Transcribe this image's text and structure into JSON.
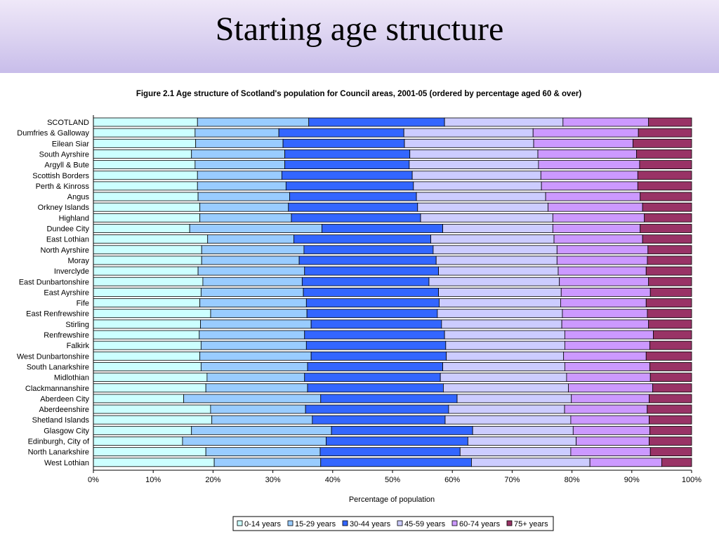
{
  "slide": {
    "title": "Starting age structure"
  },
  "chart_data": {
    "type": "bar",
    "orientation": "horizontal",
    "stacked": true,
    "title": "Figure 2.1 Age structure of Scotland's population for Council areas, 2001-05 (ordered by percentage aged 60 & over)",
    "xlabel": "Percentage of population",
    "ylabel": "",
    "xlim": [
      0,
      100
    ],
    "x_ticks": [
      "0%",
      "10%",
      "20%",
      "30%",
      "40%",
      "50%",
      "60%",
      "70%",
      "80%",
      "90%",
      "100%"
    ],
    "legend_position": "bottom",
    "grid": false,
    "categories": [
      "SCOTLAND",
      "Dumfries & Galloway",
      "Eilean Siar",
      "South Ayrshire",
      "Argyll & Bute",
      "Scottish Borders",
      "Perth & Kinross",
      "Angus",
      "Orkney Islands",
      "Highland",
      "Dundee City",
      "East Lothian",
      "North Ayrshire",
      "Moray",
      "Inverclyde",
      "East Dunbartonshire",
      "East Ayrshire",
      "Fife",
      "East Renfrewshire",
      "Stirling",
      "Renfrewshire",
      "Falkirk",
      "West Dunbartonshire",
      "South Lanarkshire",
      "Midlothian",
      "Clackmannanshire",
      "Aberdeen City",
      "Aberdeenshire",
      "Shetland Islands",
      "Glasgow City",
      "Edinburgh, City of",
      "North Lanarkshire",
      "West Lothian"
    ],
    "series": [
      {
        "name": "0-14 years",
        "color": "#ccffff",
        "values": [
          17.4,
          17.0,
          17.1,
          16.4,
          17.0,
          17.4,
          17.4,
          17.5,
          17.8,
          17.8,
          16.1,
          19.1,
          18.1,
          18.1,
          17.5,
          18.3,
          18.0,
          17.8,
          19.6,
          17.9,
          17.7,
          18.0,
          17.8,
          18.0,
          19.0,
          18.8,
          15.1,
          19.0,
          19.8,
          16.4,
          14.9,
          18.8,
          20.2
        ]
      },
      {
        "name": "15-29 years",
        "color": "#99ccff",
        "values": [
          18.6,
          14.0,
          14.6,
          15.6,
          15.0,
          14.1,
          14.8,
          15.3,
          14.8,
          15.3,
          22.1,
          14.4,
          17.1,
          16.3,
          17.8,
          16.6,
          17.1,
          17.8,
          16.1,
          18.5,
          17.6,
          17.6,
          18.6,
          17.8,
          16.3,
          17.0,
          22.9,
          15.4,
          16.8,
          23.4,
          24.0,
          19.1,
          17.8
        ]
      },
      {
        "name": "30-44 years",
        "color": "#3366ff",
        "values": [
          22.7,
          20.9,
          20.3,
          20.9,
          20.8,
          21.8,
          21.3,
          21.2,
          21.6,
          21.6,
          20.2,
          22.9,
          21.6,
          22.9,
          22.4,
          21.2,
          22.6,
          22.2,
          21.8,
          21.8,
          23.4,
          23.3,
          22.6,
          22.6,
          22.7,
          22.7,
          22.8,
          23.2,
          22.2,
          23.6,
          23.7,
          23.4,
          25.2
        ]
      },
      {
        "name": "45-59 years",
        "color": "#ccccff",
        "values": [
          19.8,
          21.6,
          21.6,
          21.4,
          21.6,
          21.5,
          21.4,
          21.6,
          21.8,
          22.1,
          18.4,
          20.6,
          20.7,
          20.2,
          20.0,
          21.8,
          20.5,
          20.3,
          20.9,
          20.1,
          20.1,
          19.9,
          19.6,
          20.4,
          21.1,
          20.9,
          19.1,
          18.8,
          21.0,
          16.8,
          18.1,
          18.5,
          19.8
        ]
      },
      {
        "name": "60-74 years",
        "color": "#cc99ff",
        "values": [
          14.3,
          17.6,
          16.6,
          16.5,
          16.9,
          16.2,
          16.1,
          15.8,
          15.8,
          15.3,
          14.6,
          14.8,
          15.2,
          15.1,
          14.7,
          14.9,
          14.9,
          14.3,
          14.2,
          14.5,
          14.8,
          14.2,
          13.8,
          14.2,
          14.0,
          14.1,
          13.0,
          13.4,
          13.1,
          12.8,
          12.2,
          13.3,
          12.0
        ]
      },
      {
        "name": "75+ years",
        "color": "#993366",
        "values": [
          7.2,
          8.9,
          9.8,
          9.2,
          8.7,
          9.0,
          9.0,
          8.6,
          8.2,
          7.9,
          8.6,
          8.2,
          7.3,
          7.4,
          7.6,
          7.2,
          6.9,
          7.6,
          7.4,
          7.2,
          6.4,
          7.0,
          7.6,
          7.0,
          6.9,
          6.5,
          7.1,
          7.2,
          7.1,
          7.0,
          7.1,
          6.9,
          5.0
        ]
      }
    ]
  }
}
